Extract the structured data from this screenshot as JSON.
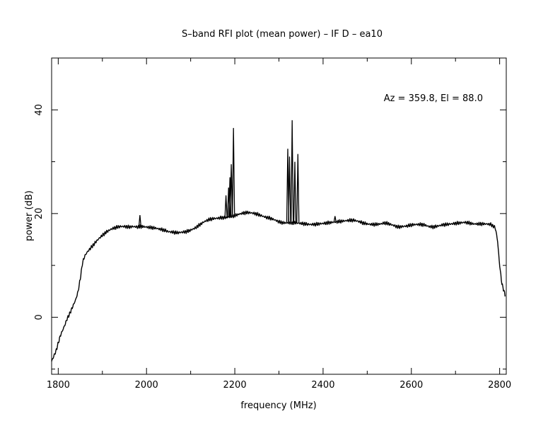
{
  "chart_data": {
    "type": "line",
    "title": "S–band RFI plot (mean power) – IF D – ea10",
    "xlabel": "frequency (MHz)",
    "ylabel": "power (dB)",
    "annotation": "Az = 359.8, El = 88.0",
    "xlim": [
      1785,
      2815
    ],
    "ylim": [
      -11,
      50
    ],
    "x_ticks": [
      1800,
      2000,
      2200,
      2400,
      2600,
      2800
    ],
    "y_ticks": [
      0,
      20,
      40
    ],
    "x_minor_step": 100,
    "y_minor_step": 10,
    "grid": false,
    "line_color": "#000000",
    "series": [
      {
        "x": [
          1785,
          1790,
          1795,
          1800,
          1805,
          1810,
          1815,
          1820,
          1825,
          1830,
          1835,
          1840,
          1845,
          1850,
          1855,
          1860,
          1865,
          1870,
          1880,
          1890,
          1900,
          1910,
          1920,
          1930,
          1940,
          1950,
          1960,
          1970,
          1980,
          1990,
          2000,
          2010,
          2020,
          2030,
          2040,
          2050,
          2060,
          2070,
          2080,
          2090,
          2100,
          2110,
          2120,
          2130,
          2140,
          2150,
          2160,
          2170,
          2180,
          2190,
          2200,
          2210,
          2220,
          2230,
          2240,
          2250,
          2260,
          2270,
          2280,
          2290,
          2300,
          2310,
          2320,
          2330,
          2340,
          2350,
          2360,
          2370,
          2380,
          2390,
          2400,
          2410,
          2420,
          2430,
          2440,
          2450,
          2460,
          2470,
          2480,
          2490,
          2500,
          2510,
          2520,
          2530,
          2540,
          2550,
          2560,
          2570,
          2580,
          2590,
          2600,
          2610,
          2620,
          2630,
          2640,
          2650,
          2660,
          2670,
          2680,
          2690,
          2700,
          2710,
          2720,
          2730,
          2740,
          2750,
          2760,
          2770,
          2780,
          2790,
          2795,
          2800,
          2805,
          2810,
          2813
        ],
        "y": [
          -8.5,
          -7.5,
          -6.5,
          -5.0,
          -3.5,
          -2.5,
          -1.5,
          -0.3,
          0.5,
          1.5,
          2.5,
          3.5,
          5.0,
          7.5,
          10.5,
          11.8,
          12.5,
          13.0,
          14.0,
          15.0,
          15.8,
          16.5,
          17.0,
          17.3,
          17.5,
          17.5,
          17.4,
          17.5,
          17.4,
          17.5,
          17.4,
          17.3,
          17.2,
          17.0,
          16.8,
          16.5,
          16.4,
          16.3,
          16.4,
          16.5,
          16.8,
          17.2,
          17.8,
          18.4,
          18.8,
          19.0,
          19.1,
          19.2,
          19.2,
          19.4,
          19.6,
          19.9,
          20.1,
          20.2,
          20.1,
          19.9,
          19.6,
          19.3,
          19.1,
          18.8,
          18.4,
          18.2,
          18.2,
          18.2,
          18.2,
          18.1,
          18.0,
          17.9,
          17.9,
          18.0,
          18.1,
          18.2,
          18.3,
          18.4,
          18.5,
          18.6,
          18.7,
          18.7,
          18.5,
          18.2,
          18.0,
          17.9,
          17.9,
          18.0,
          18.2,
          18.0,
          17.7,
          17.4,
          17.5,
          17.6,
          17.8,
          17.9,
          17.9,
          17.8,
          17.5,
          17.4,
          17.6,
          17.8,
          17.9,
          18.0,
          18.1,
          18.2,
          18.3,
          18.2,
          18.0,
          18.0,
          18.0,
          18.0,
          17.9,
          17.3,
          15.0,
          10.0,
          6.5,
          5.0,
          4.0
        ],
        "spikes": [
          {
            "x": 1985,
            "y": 19.7
          },
          {
            "x": 2180,
            "y": 23.5
          },
          {
            "x": 2186,
            "y": 25.0
          },
          {
            "x": 2189,
            "y": 27.0
          },
          {
            "x": 2192,
            "y": 29.5
          },
          {
            "x": 2197,
            "y": 36.5
          },
          {
            "x": 2320,
            "y": 32.5
          },
          {
            "x": 2324,
            "y": 31.0
          },
          {
            "x": 2330,
            "y": 38.0
          },
          {
            "x": 2336,
            "y": 30.0
          },
          {
            "x": 2343,
            "y": 31.5
          },
          {
            "x": 2427,
            "y": 19.5
          }
        ]
      }
    ]
  }
}
